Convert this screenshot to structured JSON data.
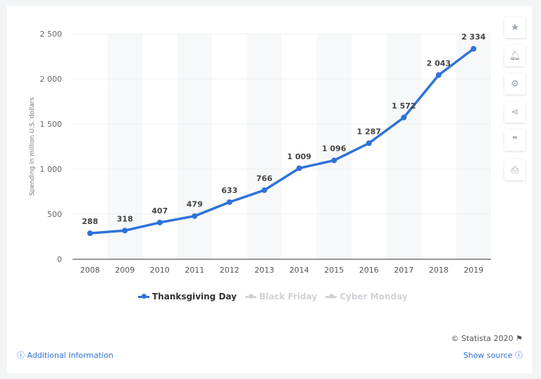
{
  "chart_data": {
    "type": "line",
    "categories": [
      "2008",
      "2009",
      "2010",
      "2011",
      "2012",
      "2013",
      "2014",
      "2015",
      "2016",
      "2017",
      "2018",
      "2019"
    ],
    "series": [
      {
        "name": "Thanksgiving Day",
        "values": [
          288,
          318,
          407,
          479,
          633,
          766,
          1009,
          1096,
          1287,
          1572,
          2043,
          2334
        ]
      }
    ],
    "data_labels": [
      "288",
      "318",
      "407",
      "479",
      "633",
      "766",
      "1 009",
      "1 096",
      "1 287",
      "1 572",
      "2 043",
      "2 334"
    ],
    "ylabel": "Spending in million U.S. dollars",
    "ylim": [
      0,
      2500
    ],
    "yticks": [
      0,
      500,
      1000,
      1500,
      2000,
      2500
    ],
    "ytick_labels": [
      "0",
      "500",
      "1 000",
      "1 500",
      "2 000",
      "2 500"
    ],
    "grid": true,
    "legend_position": "bottom",
    "colors": {
      "line": "#2f72d8",
      "inactive": "#cfd3d8"
    }
  },
  "legend": [
    {
      "label": "Thanksgiving Day",
      "active": true
    },
    {
      "label": "Black Friday",
      "active": false
    },
    {
      "label": "Cyber Monday",
      "active": false
    }
  ],
  "sidebar_icons": [
    "star-icon",
    "bell-icon",
    "gear-icon",
    "share-icon",
    "quote-icon",
    "print-icon"
  ],
  "footer": {
    "additional_info": "Additional Information",
    "copyright": "© Statista 2020",
    "show_source": "Show source"
  }
}
